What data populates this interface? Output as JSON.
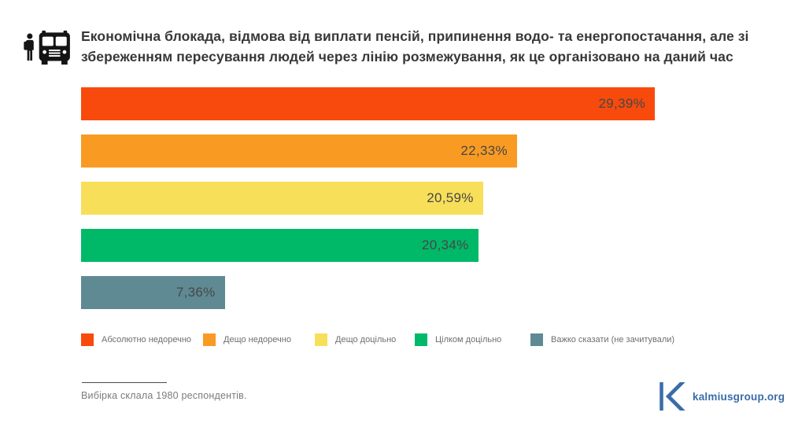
{
  "title": {
    "line1": "Економічна блокада, відмова від виплати пенсій, припинення водо- та енергопостачання, але зі",
    "line2": "збереженням пересування людей через лінію розмежування, як це організовано на даний час"
  },
  "chart_data": {
    "type": "bar",
    "orientation": "horizontal",
    "title": "Економічна блокада, відмова від виплати пенсій, припинення водо- та енергопостачання, але зі збереженням пересування людей через лінію розмежування, як це організовано на даний час",
    "categories": [
      "Абсолютно недоречно",
      "Дещо недоречно",
      "Дещо доцільно",
      "Цілком доцільно",
      "Важко сказати (не зачитували)"
    ],
    "values": [
      29.39,
      22.33,
      20.59,
      20.34,
      7.36
    ],
    "value_labels": [
      "29,39%",
      "22,33%",
      "20,59%",
      "20,34%",
      "7,36%"
    ],
    "colors": [
      "#f84a0c",
      "#f99b23",
      "#f8df59",
      "#00b968",
      "#5f8a94"
    ],
    "xlim": [
      0,
      29.39
    ],
    "grid": false,
    "legend_position": "bottom",
    "value_label_position": "inside-end"
  },
  "legend": {
    "items": [
      {
        "label": "Абсолютно недоречно",
        "color": "#f84a0c"
      },
      {
        "label": "Дещо недоречно",
        "color": "#f99b23"
      },
      {
        "label": "Дещо доцільно",
        "color": "#f8df59"
      },
      {
        "label": "Цілком доцільно",
        "color": "#00b968"
      },
      {
        "label": "Важко сказати (не зачитували)",
        "color": "#5f8a94"
      }
    ]
  },
  "footer": {
    "note": "Вибірка склала 1980 респондентів.",
    "brand_url": "kalmiusgroup.org"
  },
  "icons": {
    "header": "bus-passenger-icon",
    "brand": "kalmius-k-logo-icon"
  },
  "colors": {
    "title_text": "#383838",
    "bar_value_text": "#474747",
    "legend_text": "#6e6e6e",
    "note_text": "#7b7b7b",
    "brand_blue": "#3a6ca8",
    "icon_black": "#151515"
  }
}
